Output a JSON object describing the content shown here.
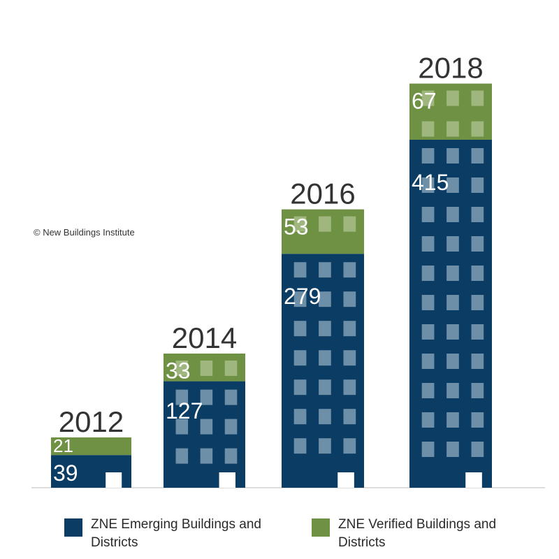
{
  "copyright": "© New Buildings Institute",
  "colors": {
    "emerging": "#0b3c63",
    "verified": "#6f9143",
    "window_on_blue": "#6e8fa8",
    "window_on_green": "#a8bd8a",
    "door": "#ffffff",
    "baseline": "#bbbbbb"
  },
  "legend": [
    {
      "label": "ZNE Emerging Buildings and Districts",
      "color": "#0b3c63"
    },
    {
      "label": "ZNE Verified Buildings and Districts",
      "color": "#6f9143"
    }
  ],
  "chart_data": {
    "type": "bar",
    "stacked": true,
    "categories": [
      "2012",
      "2014",
      "2016",
      "2018"
    ],
    "series": [
      {
        "name": "ZNE Emerging Buildings and Districts",
        "values": [
          39,
          127,
          279,
          415
        ]
      },
      {
        "name": "ZNE Verified Buildings and Districts",
        "values": [
          21,
          33,
          53,
          67
        ]
      }
    ],
    "legend_position": "bottom"
  }
}
